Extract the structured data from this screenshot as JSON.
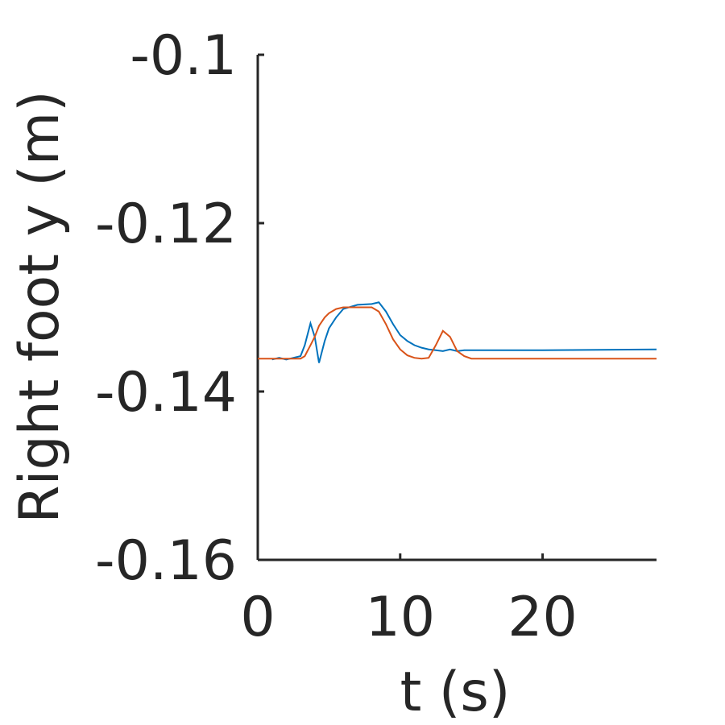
{
  "chart_data": {
    "type": "line",
    "xlabel": "t (s)",
    "ylabel": "Right foot y (m)",
    "x": [
      0,
      1,
      1.5,
      2,
      2.5,
      3,
      3.3,
      3.7,
      4,
      4.3,
      4.7,
      5,
      5.5,
      6,
      7,
      8,
      8.5,
      9,
      9.5,
      10,
      10.5,
      11,
      11.5,
      12,
      12.5,
      13,
      13.5,
      14,
      14.5,
      15,
      20,
      28
    ],
    "series": [
      {
        "color": "#0072bd",
        "values": [
          null,
          -0.1362,
          -0.136,
          -0.1362,
          -0.136,
          -0.1358,
          -0.1345,
          -0.1319,
          -0.1335,
          -0.1366,
          -0.134,
          -0.1325,
          -0.1312,
          -0.1302,
          -0.1297,
          -0.1296,
          -0.1294,
          -0.1305,
          -0.132,
          -0.1333,
          -0.134,
          -0.1345,
          -0.1348,
          -0.135,
          -0.1351,
          -0.1352,
          -0.135,
          -0.1352,
          -0.1351,
          -0.1351,
          -0.1351,
          -0.135
        ]
      },
      {
        "color": "#d95319",
        "values": [
          -0.1361,
          -0.1361,
          -0.1361,
          -0.1361,
          -0.1361,
          -0.1361,
          -0.1358,
          -0.1345,
          -0.1335,
          -0.1322,
          -0.1312,
          -0.1307,
          -0.1302,
          -0.13,
          -0.13,
          -0.13,
          -0.1305,
          -0.132,
          -0.1338,
          -0.135,
          -0.1357,
          -0.136,
          -0.1361,
          -0.136,
          -0.1345,
          -0.1328,
          -0.1335,
          -0.1352,
          -0.1358,
          -0.1361,
          -0.1361,
          -0.1361
        ]
      }
    ],
    "xlim": [
      0,
      28
    ],
    "xticks": [
      0,
      10,
      20
    ],
    "ylim": [
      -0.16,
      -0.1
    ],
    "yticks": [
      -0.16,
      -0.14,
      -0.12,
      -0.1
    ],
    "grid": false
  }
}
